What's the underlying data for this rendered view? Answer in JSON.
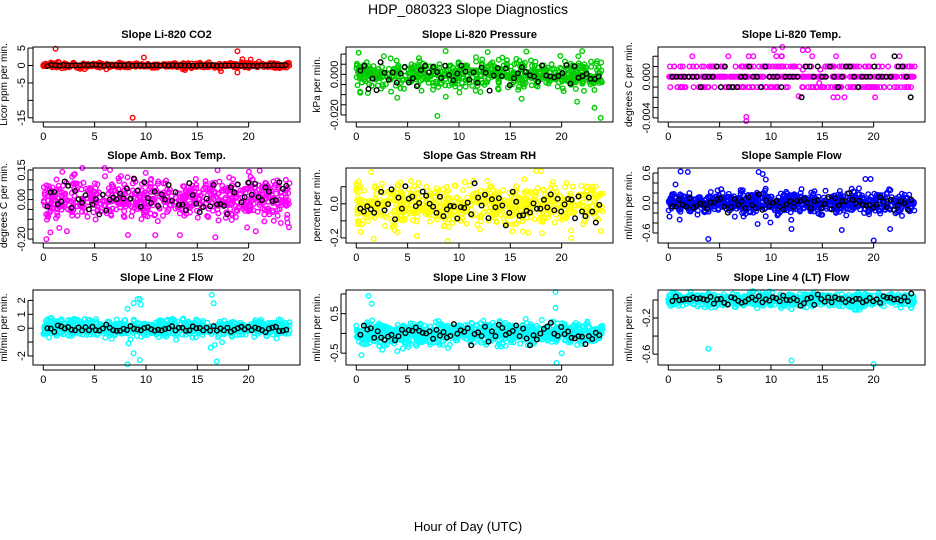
{
  "title": "HDP_080323  Slope Diagnostics",
  "xlabel": "Hour of Day (UTC)",
  "chart_data": [
    {
      "type": "scatter",
      "title": "Slope Li-820 CO2",
      "ylabel": "Licor ppm per min.",
      "color": "#ff0000",
      "xlim": [
        -1,
        25
      ],
      "ylim": [
        -16.2,
        5.3
      ],
      "xticks": [
        0,
        5,
        10,
        15,
        20
      ],
      "yticks": [
        -15,
        -10,
        -5,
        0,
        5
      ],
      "yticklabels": [
        "-15",
        "",
        "-5",
        "0",
        "5"
      ],
      "cloud": {
        "n": 500,
        "sd": 0.35,
        "seed": 1
      },
      "black": {
        "n": 60,
        "sd": 0.1
      },
      "outliers": [
        [
          1.2,
          4.8
        ],
        [
          9.8,
          2.3
        ],
        [
          8.7,
          -15
        ],
        [
          18.9,
          4.1
        ],
        [
          19.4,
          1.8
        ],
        [
          20.2,
          1.7
        ],
        [
          17.3,
          -1.6
        ],
        [
          18.9,
          -2.0
        ],
        [
          13.8,
          -1.3
        ],
        [
          1.5,
          0.9
        ],
        [
          21,
          1.1
        ]
      ]
    },
    {
      "type": "scatter",
      "title": "Slope Li-820 Pressure",
      "ylabel": "kPa per min.",
      "color": "#00cc00",
      "xlim": [
        -1,
        25
      ],
      "ylim": [
        -0.0235,
        0.0135
      ],
      "xticks": [
        0,
        5,
        10,
        15,
        20
      ],
      "yticks": [
        -0.02,
        -0.015,
        -0.01,
        -0.005,
        0,
        0.005,
        0.01
      ],
      "yticklabels": [
        "-0.020",
        "",
        "",
        "",
        "0.000",
        "",
        ""
      ],
      "cloud": {
        "n": 600,
        "sd": 0.0035,
        "seed": 2
      },
      "black": {
        "n": 60,
        "sd": 0.003
      },
      "outliers": [
        [
          8.7,
          0.0115
        ],
        [
          12.8,
          0.011
        ],
        [
          22,
          0.0115
        ],
        [
          7.9,
          -0.0205
        ],
        [
          23.8,
          -0.0215
        ],
        [
          4,
          -0.0115
        ],
        [
          16.1,
          -0.012
        ],
        [
          23.2,
          -0.0165
        ],
        [
          21.5,
          -0.0135
        ]
      ]
    },
    {
      "type": "scatter",
      "title": "Slope Li-820 Temp.",
      "ylabel": "degrees C per min.",
      "color": "#ff00ff",
      "xlim": [
        -1,
        25
      ],
      "ylim": [
        -0.0044,
        0.0029
      ],
      "xticks": [
        0,
        5,
        10,
        15,
        20
      ],
      "yticks": [
        -0.004,
        -0.003,
        -0.002,
        -0.001,
        0,
        0.001,
        0.002
      ],
      "yticklabels": [
        "-0.004",
        "",
        "",
        "",
        "0.000",
        "",
        ""
      ],
      "cloud": {
        "n": 450,
        "sd": 0.0007,
        "seed": 3,
        "quantize": 0.001
      },
      "black": {
        "n": 60,
        "sd": 0.0006,
        "quantize": 0.001
      },
      "outliers": [
        [
          10.3,
          0.0026
        ],
        [
          13.1,
          0.0026
        ],
        [
          13.6,
          0.0026
        ],
        [
          7.6,
          -0.0039
        ],
        [
          7.6,
          -0.0043
        ],
        [
          13.1,
          0.0007
        ],
        [
          14.8,
          0.0007
        ],
        [
          14.7,
          -0.0006
        ],
        [
          12.7,
          -0.0019
        ]
      ]
    },
    {
      "type": "scatter",
      "title": "Slope Amb. Box Temp.",
      "ylabel": "degrees C per min.",
      "color": "#ff00ff",
      "xlim": [
        -1,
        25
      ],
      "ylim": [
        -0.22,
        0.16
      ],
      "xticks": [
        0,
        5,
        10,
        15,
        20
      ],
      "yticks": [
        -0.2,
        -0.15,
        -0.1,
        -0.05,
        0,
        0.05,
        0.1,
        0.15
      ],
      "yticklabels": [
        "-0.20",
        "",
        "",
        "",
        "0.00",
        "",
        "",
        "0.15"
      ],
      "cloud": {
        "n": 650,
        "sd": 0.055,
        "seed": 4
      },
      "black": {
        "n": 70,
        "sd": 0.045
      },
      "outliers": [
        [
          0.3,
          -0.2
        ],
        [
          6.5,
          0.15
        ],
        [
          10.9,
          -0.18
        ],
        [
          13.3,
          -0.18
        ],
        [
          20.7,
          -0.16
        ],
        [
          2.3,
          -0.16
        ]
      ]
    },
    {
      "type": "scatter",
      "title": "Slope Gas Stream RH",
      "ylabel": "percent per min.",
      "color": "#ffff00",
      "xlim": [
        -1,
        25
      ],
      "ylim": [
        -0.23,
        0.21
      ],
      "xticks": [
        0,
        5,
        10,
        15,
        20
      ],
      "yticks": [
        -0.2,
        -0.1,
        0,
        0.1
      ],
      "yticklabels": [
        "-0.2",
        "",
        "0.0",
        ""
      ],
      "cloud": {
        "n": 650,
        "sd": 0.06,
        "seed": 5
      },
      "black": {
        "n": 70,
        "sd": 0.055
      },
      "outliers": [
        [
          8.9,
          -0.22
        ],
        [
          18,
          0.19
        ],
        [
          0.5,
          -0.12
        ],
        [
          23.8,
          -0.16
        ]
      ]
    },
    {
      "type": "scatter",
      "title": "Slope Sample Flow",
      "ylabel": "ml/min per min.",
      "color": "#0000ff",
      "xlim": [
        -1,
        25
      ],
      "ylim": [
        -0.8,
        0.7
      ],
      "xticks": [
        0,
        5,
        10,
        15,
        20
      ],
      "yticks": [
        -0.6,
        -0.4,
        -0.2,
        0,
        0.2,
        0.4,
        0.6
      ],
      "yticklabels": [
        "-0.6",
        "",
        "",
        "0.0",
        "",
        "",
        "0.6"
      ],
      "cloud": {
        "n": 750,
        "sd": 0.11,
        "seed": 6
      },
      "black": {
        "n": 70,
        "sd": 0.08
      },
      "outliers": [
        [
          1.2,
          0.63
        ],
        [
          1.9,
          0.62
        ],
        [
          8.8,
          0.62
        ],
        [
          9.2,
          0.58
        ],
        [
          9.5,
          0.47
        ],
        [
          19.2,
          0.48
        ],
        [
          19.7,
          0.48
        ],
        [
          3.9,
          -0.72
        ],
        [
          20,
          -0.75
        ],
        [
          12,
          -0.52
        ],
        [
          16.9,
          -0.54
        ],
        [
          21.6,
          -0.52
        ],
        [
          0.7,
          0.37
        ],
        [
          8.7,
          -0.42
        ]
      ]
    },
    {
      "type": "scatter",
      "title": "Slope Line 2 Flow",
      "ylabel": "ml/min per min.",
      "color": "#00ffff",
      "xlim": [
        -1,
        25
      ],
      "ylim": [
        -2.65,
        2.75
      ],
      "xticks": [
        0,
        5,
        10,
        15,
        20
      ],
      "yticks": [
        -2,
        -1,
        0,
        1,
        2
      ],
      "yticklabels": [
        "-2",
        "",
        "0",
        "1",
        "2"
      ],
      "cloud": {
        "n": 750,
        "sd": 0.3,
        "seed": 7
      },
      "black": {
        "n": 70,
        "sd": 0.15
      },
      "outliers": [
        [
          8.2,
          1.4
        ],
        [
          8.8,
          1.8
        ],
        [
          9.2,
          2.1
        ],
        [
          9.5,
          1.7
        ],
        [
          9.4,
          2.1
        ],
        [
          8.3,
          -1.1
        ],
        [
          8.8,
          -1.8
        ],
        [
          9.4,
          -2.3
        ],
        [
          8.5,
          -0.8
        ],
        [
          16.4,
          2.4
        ],
        [
          16.6,
          1.8
        ],
        [
          16.3,
          -1.4
        ],
        [
          16.7,
          -1.2
        ],
        [
          16.9,
          -2.4
        ],
        [
          17.4,
          -1
        ],
        [
          8.2,
          -2.6
        ]
      ]
    },
    {
      "type": "scatter",
      "title": "Slope Line 3 Flow",
      "ylabel": "ml/min per min.",
      "color": "#00ffff",
      "xlim": [
        -1,
        25
      ],
      "ylim": [
        -0.8,
        1.1
      ],
      "xticks": [
        0,
        5,
        10,
        15,
        20
      ],
      "yticks": [
        -0.5,
        0,
        0.5,
        1
      ],
      "yticklabels": [
        "-0.5",
        "",
        "0.5",
        ""
      ],
      "cloud": {
        "n": 750,
        "sd": 0.14,
        "seed": 8
      },
      "black": {
        "n": 70,
        "sd": 0.12
      },
      "outliers": [
        [
          1.2,
          0.95
        ],
        [
          1.5,
          0.75
        ],
        [
          19.4,
          1.05
        ],
        [
          19.4,
          0.65
        ],
        [
          19.5,
          -0.75
        ],
        [
          0.5,
          -0.55
        ],
        [
          4,
          -0.45
        ],
        [
          20,
          -0.5
        ]
      ]
    },
    {
      "type": "scatter",
      "title": "Slope Line 4 (LT) Flow",
      "ylabel": "ml/min per min.",
      "color": "#00ffff",
      "xlim": [
        -1,
        25
      ],
      "ylim": [
        -0.72,
        0.11
      ],
      "xticks": [
        0,
        5,
        10,
        15,
        20
      ],
      "yticks": [
        -0.6,
        -0.4,
        -0.2,
        0
      ],
      "yticklabels": [
        "-0.6",
        "",
        "-0.2",
        ""
      ],
      "cloud": {
        "n": 750,
        "sd": 0.035,
        "seed": 9
      },
      "black": {
        "n": 70,
        "sd": 0.03
      },
      "outliers": [
        [
          3.9,
          -0.54
        ],
        [
          12,
          -0.67
        ],
        [
          20,
          -0.71
        ],
        [
          11,
          -0.09
        ],
        [
          18.3,
          -0.11
        ]
      ]
    }
  ]
}
